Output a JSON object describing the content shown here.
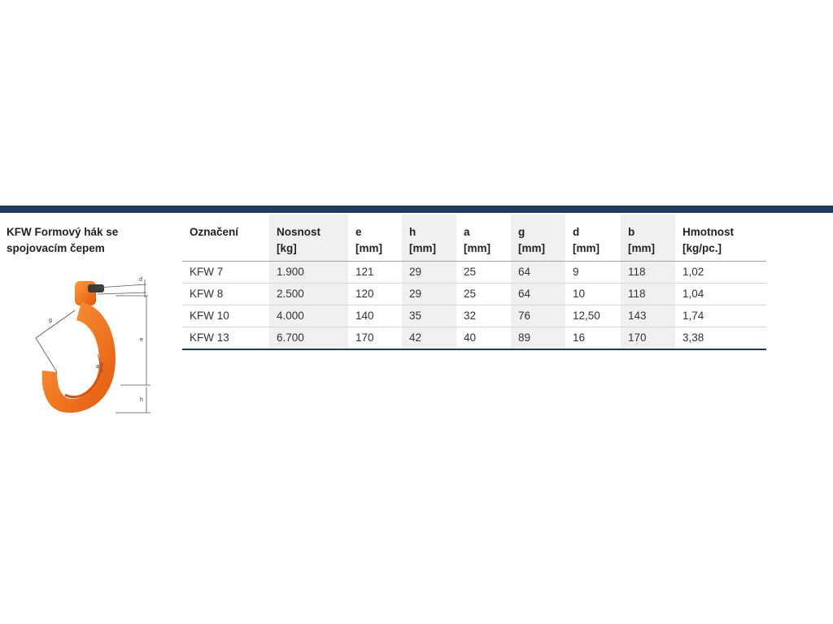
{
  "product": {
    "title": "KFW Formový hák se spojovacím čepem"
  },
  "figure": {
    "hook_color": "#f47a20",
    "dimension_labels": [
      "d",
      "e",
      "g",
      "a",
      "h"
    ]
  },
  "table": {
    "headers": [
      {
        "label": "Označení",
        "unit": ""
      },
      {
        "label": "Nosnost",
        "unit": "[kg]"
      },
      {
        "label": "e",
        "unit": "[mm]"
      },
      {
        "label": "h",
        "unit": "[mm]"
      },
      {
        "label": "a",
        "unit": "[mm]"
      },
      {
        "label": "g",
        "unit": "[mm]"
      },
      {
        "label": "d",
        "unit": "[mm]"
      },
      {
        "label": "b",
        "unit": "[mm]"
      },
      {
        "label": "Hmotnost",
        "unit": "[kg/pc.]"
      }
    ],
    "rows": [
      [
        "KFW 7",
        "1.900",
        "121",
        "29",
        "25",
        "64",
        "9",
        "118",
        "1,02"
      ],
      [
        "KFW 8",
        "2.500",
        "120",
        "29",
        "25",
        "64",
        "10",
        "118",
        "1,04"
      ],
      [
        "KFW 10",
        "4.000",
        "140",
        "35",
        "32",
        "76",
        "12,50",
        "143",
        "1,74"
      ],
      [
        "KFW 13",
        "6.700",
        "170",
        "42",
        "40",
        "89",
        "16",
        "170",
        "3,38"
      ]
    ]
  },
  "colors": {
    "accent_bar": "#1f3a63",
    "shade": "#f0f0f0"
  }
}
